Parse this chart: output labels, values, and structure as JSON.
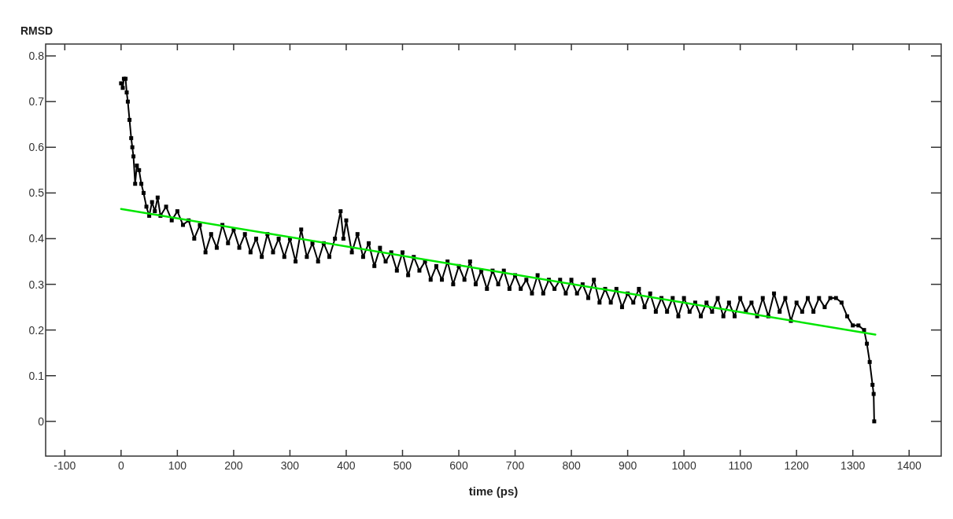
{
  "chart_data": {
    "type": "line",
    "ylabel": "RMSD",
    "xlabel": "time (ps)",
    "xlim": [
      -134,
      1457
    ],
    "ylim": [
      -0.076,
      0.826
    ],
    "xticks": [
      -100,
      0,
      100,
      200,
      300,
      400,
      500,
      600,
      700,
      800,
      900,
      1000,
      1100,
      1200,
      1300,
      1400
    ],
    "yticks": [
      0,
      0.1,
      0.2,
      0.3,
      0.4,
      0.5,
      0.6,
      0.7,
      0.8
    ],
    "grid": false,
    "series": [
      {
        "marker": "square",
        "color": "#000000",
        "x": [
          0,
          3,
          5,
          8,
          10,
          12,
          15,
          18,
          20,
          22,
          25,
          28,
          32,
          36,
          40,
          45,
          50,
          55,
          60,
          65,
          70,
          80,
          90,
          100,
          110,
          120,
          130,
          140,
          150,
          160,
          170,
          180,
          190,
          200,
          210,
          220,
          230,
          240,
          250,
          260,
          270,
          280,
          290,
          300,
          310,
          320,
          330,
          340,
          350,
          360,
          370,
          380,
          390,
          395,
          400,
          410,
          420,
          430,
          440,
          450,
          460,
          470,
          480,
          490,
          500,
          510,
          520,
          530,
          540,
          550,
          560,
          570,
          580,
          590,
          600,
          610,
          620,
          630,
          640,
          650,
          660,
          670,
          680,
          690,
          700,
          710,
          720,
          730,
          740,
          750,
          760,
          770,
          780,
          790,
          800,
          810,
          820,
          830,
          840,
          850,
          860,
          870,
          880,
          890,
          900,
          910,
          920,
          930,
          940,
          950,
          960,
          970,
          980,
          990,
          1000,
          1010,
          1020,
          1030,
          1040,
          1050,
          1060,
          1070,
          1080,
          1090,
          1100,
          1110,
          1120,
          1130,
          1140,
          1150,
          1160,
          1170,
          1180,
          1190,
          1200,
          1210,
          1220,
          1230,
          1240,
          1250,
          1260,
          1270,
          1280,
          1290,
          1300,
          1310,
          1320,
          1325,
          1330,
          1335,
          1337,
          1338
        ],
        "values": [
          0.74,
          0.73,
          0.75,
          0.75,
          0.72,
          0.7,
          0.66,
          0.62,
          0.6,
          0.58,
          0.52,
          0.56,
          0.55,
          0.52,
          0.5,
          0.47,
          0.45,
          0.48,
          0.46,
          0.49,
          0.45,
          0.47,
          0.44,
          0.46,
          0.43,
          0.44,
          0.4,
          0.43,
          0.37,
          0.41,
          0.38,
          0.43,
          0.39,
          0.42,
          0.38,
          0.41,
          0.37,
          0.4,
          0.36,
          0.41,
          0.37,
          0.4,
          0.36,
          0.4,
          0.35,
          0.42,
          0.36,
          0.39,
          0.35,
          0.39,
          0.36,
          0.4,
          0.46,
          0.4,
          0.44,
          0.37,
          0.41,
          0.36,
          0.39,
          0.34,
          0.38,
          0.35,
          0.37,
          0.33,
          0.37,
          0.32,
          0.36,
          0.33,
          0.35,
          0.31,
          0.34,
          0.31,
          0.35,
          0.3,
          0.34,
          0.31,
          0.35,
          0.3,
          0.33,
          0.29,
          0.33,
          0.3,
          0.33,
          0.29,
          0.32,
          0.29,
          0.31,
          0.28,
          0.32,
          0.28,
          0.31,
          0.29,
          0.31,
          0.28,
          0.31,
          0.28,
          0.3,
          0.27,
          0.31,
          0.26,
          0.29,
          0.26,
          0.29,
          0.25,
          0.28,
          0.26,
          0.29,
          0.25,
          0.28,
          0.24,
          0.27,
          0.24,
          0.27,
          0.23,
          0.27,
          0.24,
          0.26,
          0.23,
          0.26,
          0.24,
          0.27,
          0.23,
          0.26,
          0.23,
          0.27,
          0.24,
          0.26,
          0.23,
          0.27,
          0.23,
          0.28,
          0.24,
          0.27,
          0.22,
          0.26,
          0.24,
          0.27,
          0.24,
          0.27,
          0.25,
          0.27,
          0.27,
          0.26,
          0.23,
          0.21,
          0.21,
          0.2,
          0.17,
          0.13,
          0.08,
          0.06,
          0.0
        ]
      },
      {
        "marker": "none",
        "color": "#00e600",
        "x": [
          0,
          1340
        ],
        "values": [
          0.465,
          0.19
        ]
      }
    ]
  }
}
